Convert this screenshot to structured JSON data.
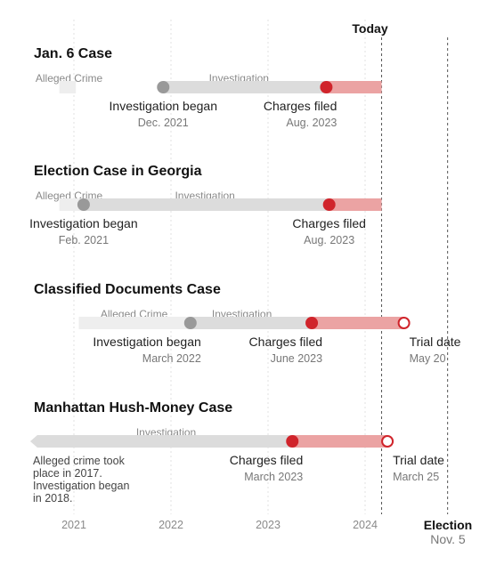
{
  "chart_data": {
    "type": "timeline",
    "x_ticks": [
      "2021",
      "2022",
      "2023",
      "2024"
    ],
    "today_label": "Today",
    "today": 2024.17,
    "election": {
      "label": "Election",
      "date": "Nov. 5",
      "x": 2024.85
    },
    "colors": {
      "alleged": "#eeeeee",
      "investigation": "#dcdcdc",
      "charged": "#eba3a3",
      "event_gray": "#999999",
      "event_red": "#d0242b"
    },
    "cases": [
      {
        "title": "Jan. 6 Case",
        "phase_labels": [
          {
            "text": "Alleged Crime",
            "x": 2020.95
          },
          {
            "text": "Investigation",
            "x": 2022.7
          }
        ],
        "segments": [
          {
            "kind": "alleged",
            "start": 2020.85,
            "end": 2021.02
          },
          {
            "kind": "investigation",
            "start": 2021.92,
            "end": 2023.6
          },
          {
            "kind": "charged",
            "start": 2023.6,
            "end": 2024.17
          }
        ],
        "events": [
          {
            "label": "Investigation began",
            "date": "Dec. 2021",
            "x": 2021.92,
            "marker": "gray",
            "anchor": "middle"
          },
          {
            "label": "Charges filed",
            "date": "Aug. 2023",
            "x": 2023.6,
            "marker": "red",
            "anchor": "end"
          }
        ]
      },
      {
        "title": "Election Case in Georgia",
        "phase_labels": [
          {
            "text": "Alleged Crime",
            "x": 2020.95
          },
          {
            "text": "Investigation",
            "x": 2022.35
          }
        ],
        "segments": [
          {
            "kind": "alleged",
            "start": 2020.85,
            "end": 2021.1
          },
          {
            "kind": "investigation",
            "start": 2021.1,
            "end": 2023.63
          },
          {
            "kind": "charged",
            "start": 2023.63,
            "end": 2024.17
          }
        ],
        "events": [
          {
            "label": "Investigation began",
            "date": "Feb. 2021",
            "x": 2021.1,
            "marker": "gray",
            "anchor": "middle"
          },
          {
            "label": "Charges filed",
            "date": "Aug. 2023",
            "x": 2023.63,
            "marker": "red",
            "anchor": "middle"
          }
        ]
      },
      {
        "title": "Classified Documents Case",
        "phase_labels": [
          {
            "text": "Alleged Crime",
            "x": 2021.62
          },
          {
            "text": "Investigation",
            "x": 2022.73
          }
        ],
        "segments": [
          {
            "kind": "alleged",
            "start": 2021.05,
            "end": 2022.2
          },
          {
            "kind": "investigation",
            "start": 2022.2,
            "end": 2023.45
          },
          {
            "kind": "charged",
            "start": 2023.45,
            "end": 2024.4
          }
        ],
        "events": [
          {
            "label": "Investigation began",
            "date": "March 2022",
            "x": 2022.2,
            "marker": "gray",
            "anchor": "end"
          },
          {
            "label": "Charges filed",
            "date": "June 2023",
            "x": 2023.45,
            "marker": "red",
            "anchor": "end"
          },
          {
            "label": "Trial date",
            "date": "May 20",
            "x": 2024.4,
            "marker": "open",
            "anchor": "start"
          }
        ]
      },
      {
        "title": "Manhattan Hush-Money Case",
        "phase_labels": [
          {
            "text": "Investigation",
            "x": 2021.95
          }
        ],
        "segments": [
          {
            "kind": "investigation",
            "start": 2020.55,
            "end": 2023.25,
            "arrow": true
          },
          {
            "kind": "charged",
            "start": 2023.25,
            "end": 2024.23
          }
        ],
        "events": [
          {
            "label": "Charges filed",
            "date": "March 2023",
            "x": 2023.25,
            "marker": "red",
            "anchor": "end"
          },
          {
            "label": "Trial date",
            "date": "March 25",
            "x": 2024.23,
            "marker": "open",
            "anchor": "start"
          }
        ],
        "note_lines": [
          "Alleged crime took",
          "place in 2017.",
          "Investigation began",
          "in 2018."
        ]
      }
    ]
  }
}
